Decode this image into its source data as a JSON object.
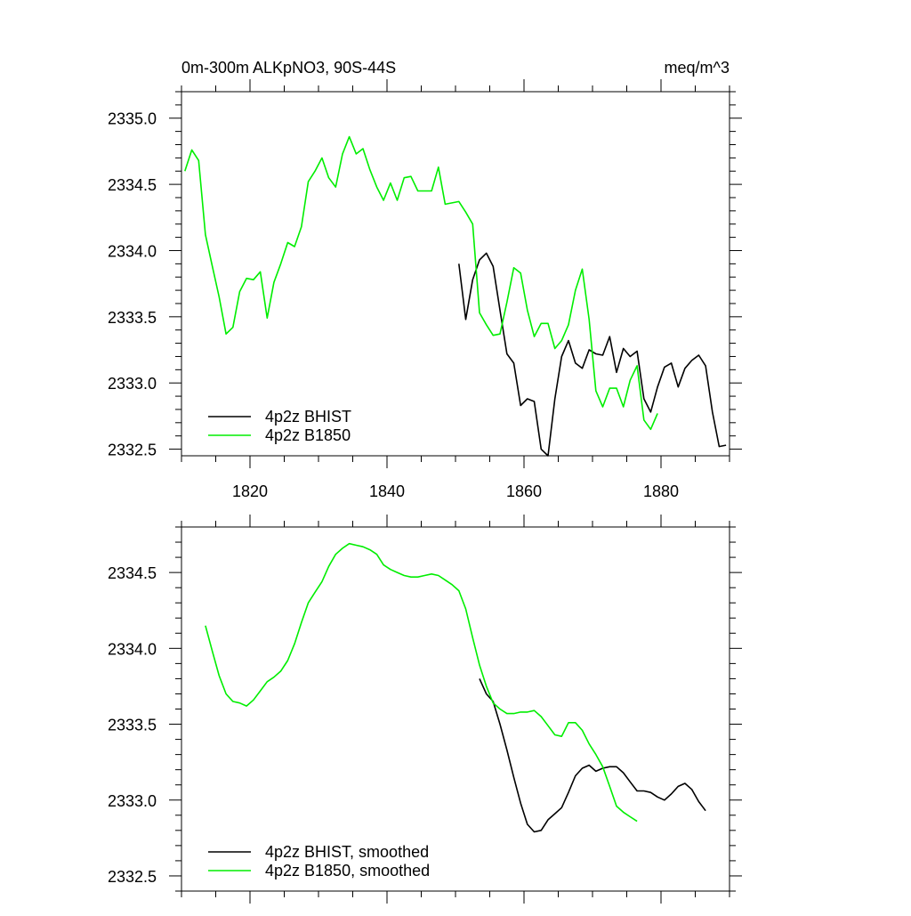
{
  "chart_data": [
    {
      "type": "line",
      "title": "0m-300m ALKpNO3, 90S-44S",
      "units": "meq/m^3",
      "xlim": [
        1810,
        1890
      ],
      "ylim": [
        2332.45,
        2335.2
      ],
      "x_ticks": [
        1820,
        1840,
        1860,
        1880
      ],
      "x_tick_labels": [
        "1820",
        "1840",
        "1860",
        "1880"
      ],
      "y_ticks": [
        2332.5,
        2333.0,
        2333.5,
        2334.0,
        2334.5,
        2335.0
      ],
      "y_tick_labels": [
        "2332.5",
        "2333.0",
        "2333.5",
        "2334.0",
        "2334.5",
        "2335.0"
      ],
      "legend_placement": "bottom-left",
      "series": [
        {
          "name": "4p2z BHIST",
          "color": "#000000",
          "x": [
            1850.5,
            1851.5,
            1852.5,
            1853.5,
            1854.5,
            1855.5,
            1856.5,
            1857.5,
            1858.5,
            1859.5,
            1860.5,
            1861.5,
            1862.5,
            1863.5,
            1864.5,
            1865.5,
            1866.5,
            1867.5,
            1868.5,
            1869.5,
            1870.5,
            1871.5,
            1872.5,
            1873.5,
            1874.5,
            1875.5,
            1876.5,
            1877.5,
            1878.5,
            1879.5,
            1880.5,
            1881.5,
            1882.5,
            1883.5,
            1884.5,
            1885.5,
            1886.5,
            1887.5,
            1888.5,
            1889.5
          ],
          "values": [
            2333.9,
            2333.48,
            2333.78,
            2333.93,
            2333.98,
            2333.88,
            2333.55,
            2333.22,
            2333.15,
            2332.83,
            2332.88,
            2332.86,
            2332.5,
            2332.45,
            2332.88,
            2333.2,
            2333.32,
            2333.15,
            2333.11,
            2333.25,
            2333.22,
            2333.21,
            2333.35,
            2333.08,
            2333.26,
            2333.2,
            2333.24,
            2332.88,
            2332.78,
            2332.97,
            2333.12,
            2333.15,
            2332.97,
            2333.11,
            2333.17,
            2333.21,
            2333.13,
            2332.78,
            2332.52,
            2332.53
          ]
        },
        {
          "name": "4p2z B1850",
          "color": "#00ee00",
          "x": [
            1810.5,
            1811.5,
            1812.5,
            1813.5,
            1814.5,
            1815.5,
            1816.5,
            1817.5,
            1818.5,
            1819.5,
            1820.5,
            1821.5,
            1822.5,
            1823.5,
            1824.5,
            1825.5,
            1826.5,
            1827.5,
            1828.5,
            1829.5,
            1830.5,
            1831.5,
            1832.5,
            1833.5,
            1834.5,
            1835.5,
            1836.5,
            1837.5,
            1838.5,
            1839.5,
            1840.5,
            1841.5,
            1842.5,
            1843.5,
            1844.5,
            1845.5,
            1846.5,
            1847.5,
            1848.5,
            1849.5,
            1850.5,
            1851.5,
            1852.5,
            1853.5,
            1854.5,
            1855.5,
            1856.5,
            1857.5,
            1858.5,
            1859.5,
            1860.5,
            1861.5,
            1862.5,
            1863.5,
            1864.5,
            1865.5,
            1866.5,
            1867.5,
            1868.5,
            1869.5,
            1870.5,
            1871.5,
            1872.5,
            1873.5,
            1874.5,
            1875.5,
            1876.5,
            1877.5,
            1878.5,
            1879.5
          ],
          "values": [
            2334.6,
            2334.76,
            2334.68,
            2334.12,
            2333.88,
            2333.65,
            2333.37,
            2333.42,
            2333.69,
            2333.79,
            2333.78,
            2333.84,
            2333.49,
            2333.76,
            2333.9,
            2334.06,
            2334.03,
            2334.18,
            2334.52,
            2334.6,
            2334.7,
            2334.55,
            2334.48,
            2334.73,
            2334.86,
            2334.73,
            2334.77,
            2334.61,
            2334.48,
            2334.38,
            2334.51,
            2334.38,
            2334.55,
            2334.56,
            2334.45,
            2334.45,
            2334.45,
            2334.63,
            2334.35,
            2334.36,
            2334.37,
            2334.29,
            2334.2,
            2333.53,
            2333.44,
            2333.36,
            2333.37,
            2333.61,
            2333.87,
            2333.83,
            2333.55,
            2333.35,
            2333.45,
            2333.45,
            2333.26,
            2333.32,
            2333.44,
            2333.7,
            2333.86,
            2333.48,
            2332.94,
            2332.82,
            2332.96,
            2332.96,
            2332.82,
            2333.02,
            2333.13,
            2332.72,
            2332.65,
            2332.77
          ]
        }
      ]
    },
    {
      "type": "line",
      "title": "",
      "xlim": [
        1810,
        1890
      ],
      "ylim": [
        2332.4,
        2334.8
      ],
      "x_ticks": [
        1820,
        1840,
        1860,
        1880
      ],
      "x_tick_labels": [
        "",
        "",
        "",
        ""
      ],
      "y_ticks": [
        2332.5,
        2333.0,
        2333.5,
        2334.0,
        2334.5
      ],
      "y_tick_labels": [
        "2332.5",
        "2333.0",
        "2333.5",
        "2334.0",
        "2334.5"
      ],
      "legend_placement": "bottom-left",
      "series": [
        {
          "name": "4p2z BHIST, smoothed",
          "color": "#000000",
          "x": [
            1853.5,
            1854.5,
            1855.5,
            1856.5,
            1857.5,
            1858.5,
            1859.5,
            1860.5,
            1861.5,
            1862.5,
            1863.5,
            1864.5,
            1865.5,
            1866.5,
            1867.5,
            1868.5,
            1869.5,
            1870.5,
            1871.5,
            1872.5,
            1873.5,
            1874.5,
            1875.5,
            1876.5,
            1877.5,
            1878.5,
            1879.5,
            1880.5,
            1881.5,
            1882.5,
            1883.5,
            1884.5,
            1885.5,
            1886.5
          ],
          "values": [
            2333.8,
            2333.7,
            2333.65,
            2333.5,
            2333.33,
            2333.15,
            2332.98,
            2332.84,
            2332.79,
            2332.8,
            2332.87,
            2332.91,
            2332.95,
            2333.05,
            2333.16,
            2333.21,
            2333.23,
            2333.19,
            2333.21,
            2333.22,
            2333.22,
            2333.18,
            2333.12,
            2333.06,
            2333.06,
            2333.05,
            2333.02,
            2333.0,
            2333.04,
            2333.09,
            2333.11,
            2333.07,
            2332.99,
            2332.93
          ]
        },
        {
          "name": "4p2z B1850, smoothed",
          "color": "#00ee00",
          "x": [
            1813.5,
            1814.5,
            1815.5,
            1816.5,
            1817.5,
            1818.5,
            1819.5,
            1820.5,
            1821.5,
            1822.5,
            1823.5,
            1824.5,
            1825.5,
            1826.5,
            1827.5,
            1828.5,
            1829.5,
            1830.5,
            1831.5,
            1832.5,
            1833.5,
            1834.5,
            1835.5,
            1836.5,
            1837.5,
            1838.5,
            1839.5,
            1840.5,
            1841.5,
            1842.5,
            1843.5,
            1844.5,
            1845.5,
            1846.5,
            1847.5,
            1848.5,
            1849.5,
            1850.5,
            1851.5,
            1852.5,
            1853.5,
            1854.5,
            1855.5,
            1856.5,
            1857.5,
            1858.5,
            1859.5,
            1860.5,
            1861.5,
            1862.5,
            1863.5,
            1864.5,
            1865.5,
            1866.5,
            1867.5,
            1868.5,
            1869.5,
            1870.5,
            1871.5,
            1872.5,
            1873.5,
            1874.5,
            1875.5,
            1876.5
          ],
          "values": [
            2334.15,
            2333.98,
            2333.82,
            2333.7,
            2333.65,
            2333.64,
            2333.62,
            2333.66,
            2333.72,
            2333.78,
            2333.81,
            2333.85,
            2333.92,
            2334.03,
            2334.17,
            2334.3,
            2334.37,
            2334.44,
            2334.54,
            2334.62,
            2334.66,
            2334.69,
            2334.68,
            2334.67,
            2334.65,
            2334.62,
            2334.55,
            2334.52,
            2334.5,
            2334.48,
            2334.47,
            2334.47,
            2334.48,
            2334.49,
            2334.48,
            2334.45,
            2334.42,
            2334.38,
            2334.26,
            2334.07,
            2333.89,
            2333.75,
            2333.64,
            2333.6,
            2333.57,
            2333.57,
            2333.58,
            2333.58,
            2333.59,
            2333.55,
            2333.49,
            2333.43,
            2333.42,
            2333.51,
            2333.51,
            2333.46,
            2333.37,
            2333.3,
            2333.22,
            2333.09,
            2332.96,
            2332.92,
            2332.89,
            2332.86
          ]
        }
      ]
    }
  ]
}
